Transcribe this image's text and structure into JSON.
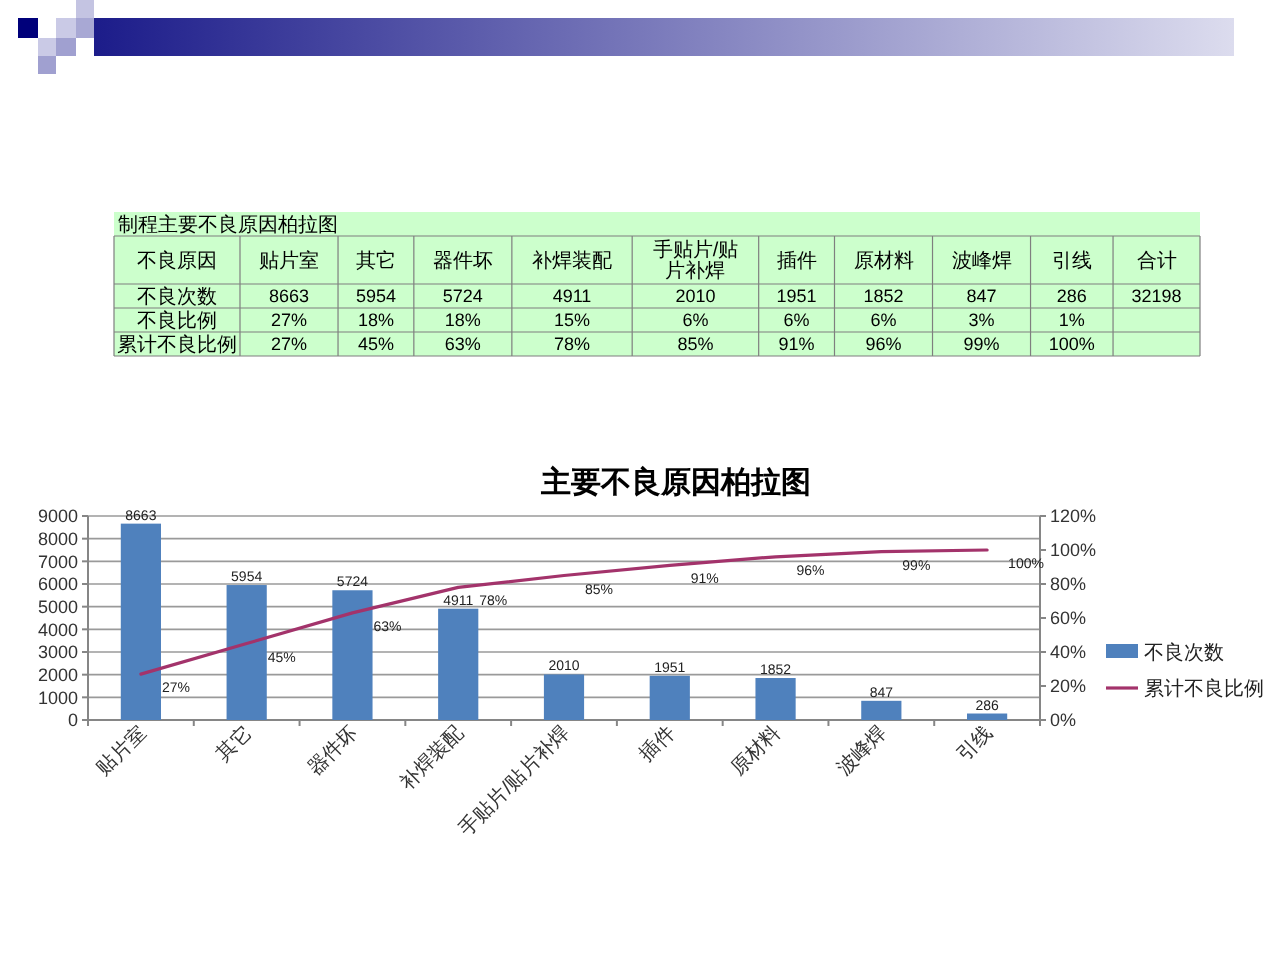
{
  "chart_data": [
    {
      "type": "other",
      "title": "制程主要不良原因柏拉图",
      "xlabel": "不良原因",
      "categories": [
        "贴片室",
        "其它",
        "器件坏",
        "补焊装配",
        "手贴片/贴片补焊",
        "插件",
        "原材料",
        "波峰焊",
        "引线",
        "合计"
      ],
      "y_categories": [
        "不良次数",
        "不良比例",
        "累计不良比例"
      ],
      "cell_labels": [
        [
          "8663",
          "5954",
          "5724",
          "4911",
          "2010",
          "1951",
          "1852",
          "847",
          "286",
          "32198"
        ],
        [
          "27%",
          "18%",
          "18%",
          "15%",
          "6%",
          "6%",
          "6%",
          "3%",
          "1%",
          null
        ],
        [
          "27%",
          "45%",
          "63%",
          "78%",
          "85%",
          "91%",
          "96%",
          "99%",
          "100%",
          null
        ]
      ]
    },
    {
      "type": "bar",
      "title": "主要不良原因柏拉图",
      "categories": [
        "贴片室",
        "其它",
        "器件坏",
        "补焊装配",
        "手贴片/贴片补焊",
        "插件",
        "原材料",
        "波峰焊",
        "引线"
      ],
      "series": [
        {
          "name": "不良次数",
          "color": "#4f81bd",
          "values": [
            8663,
            5954,
            5724,
            4911,
            2010,
            1951,
            1852,
            847,
            286
          ],
          "value_labels": [
            "8663",
            "5954",
            "5724",
            "4911",
            "2010",
            "1951",
            "1852",
            "847",
            "286"
          ]
        },
        {
          "name": "累计不良比例",
          "type": "line",
          "axis": "y2",
          "color": "#a3336b",
          "values": [
            27,
            45,
            63,
            78,
            85,
            91,
            96,
            99,
            100
          ],
          "value_labels": [
            "27%",
            "45%",
            "63%",
            "78%",
            "85%",
            "91%",
            "96%",
            "99%",
            "100%"
          ]
        }
      ],
      "ylim": [
        0,
        9000
      ],
      "yticks": [
        0,
        1000,
        2000,
        3000,
        4000,
        5000,
        6000,
        7000,
        8000,
        9000
      ],
      "y2lim": [
        0,
        120
      ],
      "y2ticks": [
        {
          "value": 0,
          "label": "0%"
        },
        {
          "value": 20,
          "label": "20%"
        },
        {
          "value": 40,
          "label": "40%"
        },
        {
          "value": 60,
          "label": "60%"
        },
        {
          "value": 80,
          "label": "80%"
        },
        {
          "value": 100,
          "label": "100%"
        },
        {
          "value": 120,
          "label": "120%"
        }
      ],
      "grid": "y",
      "legend": "right",
      "marker": "none",
      "line_style": "solid"
    }
  ]
}
